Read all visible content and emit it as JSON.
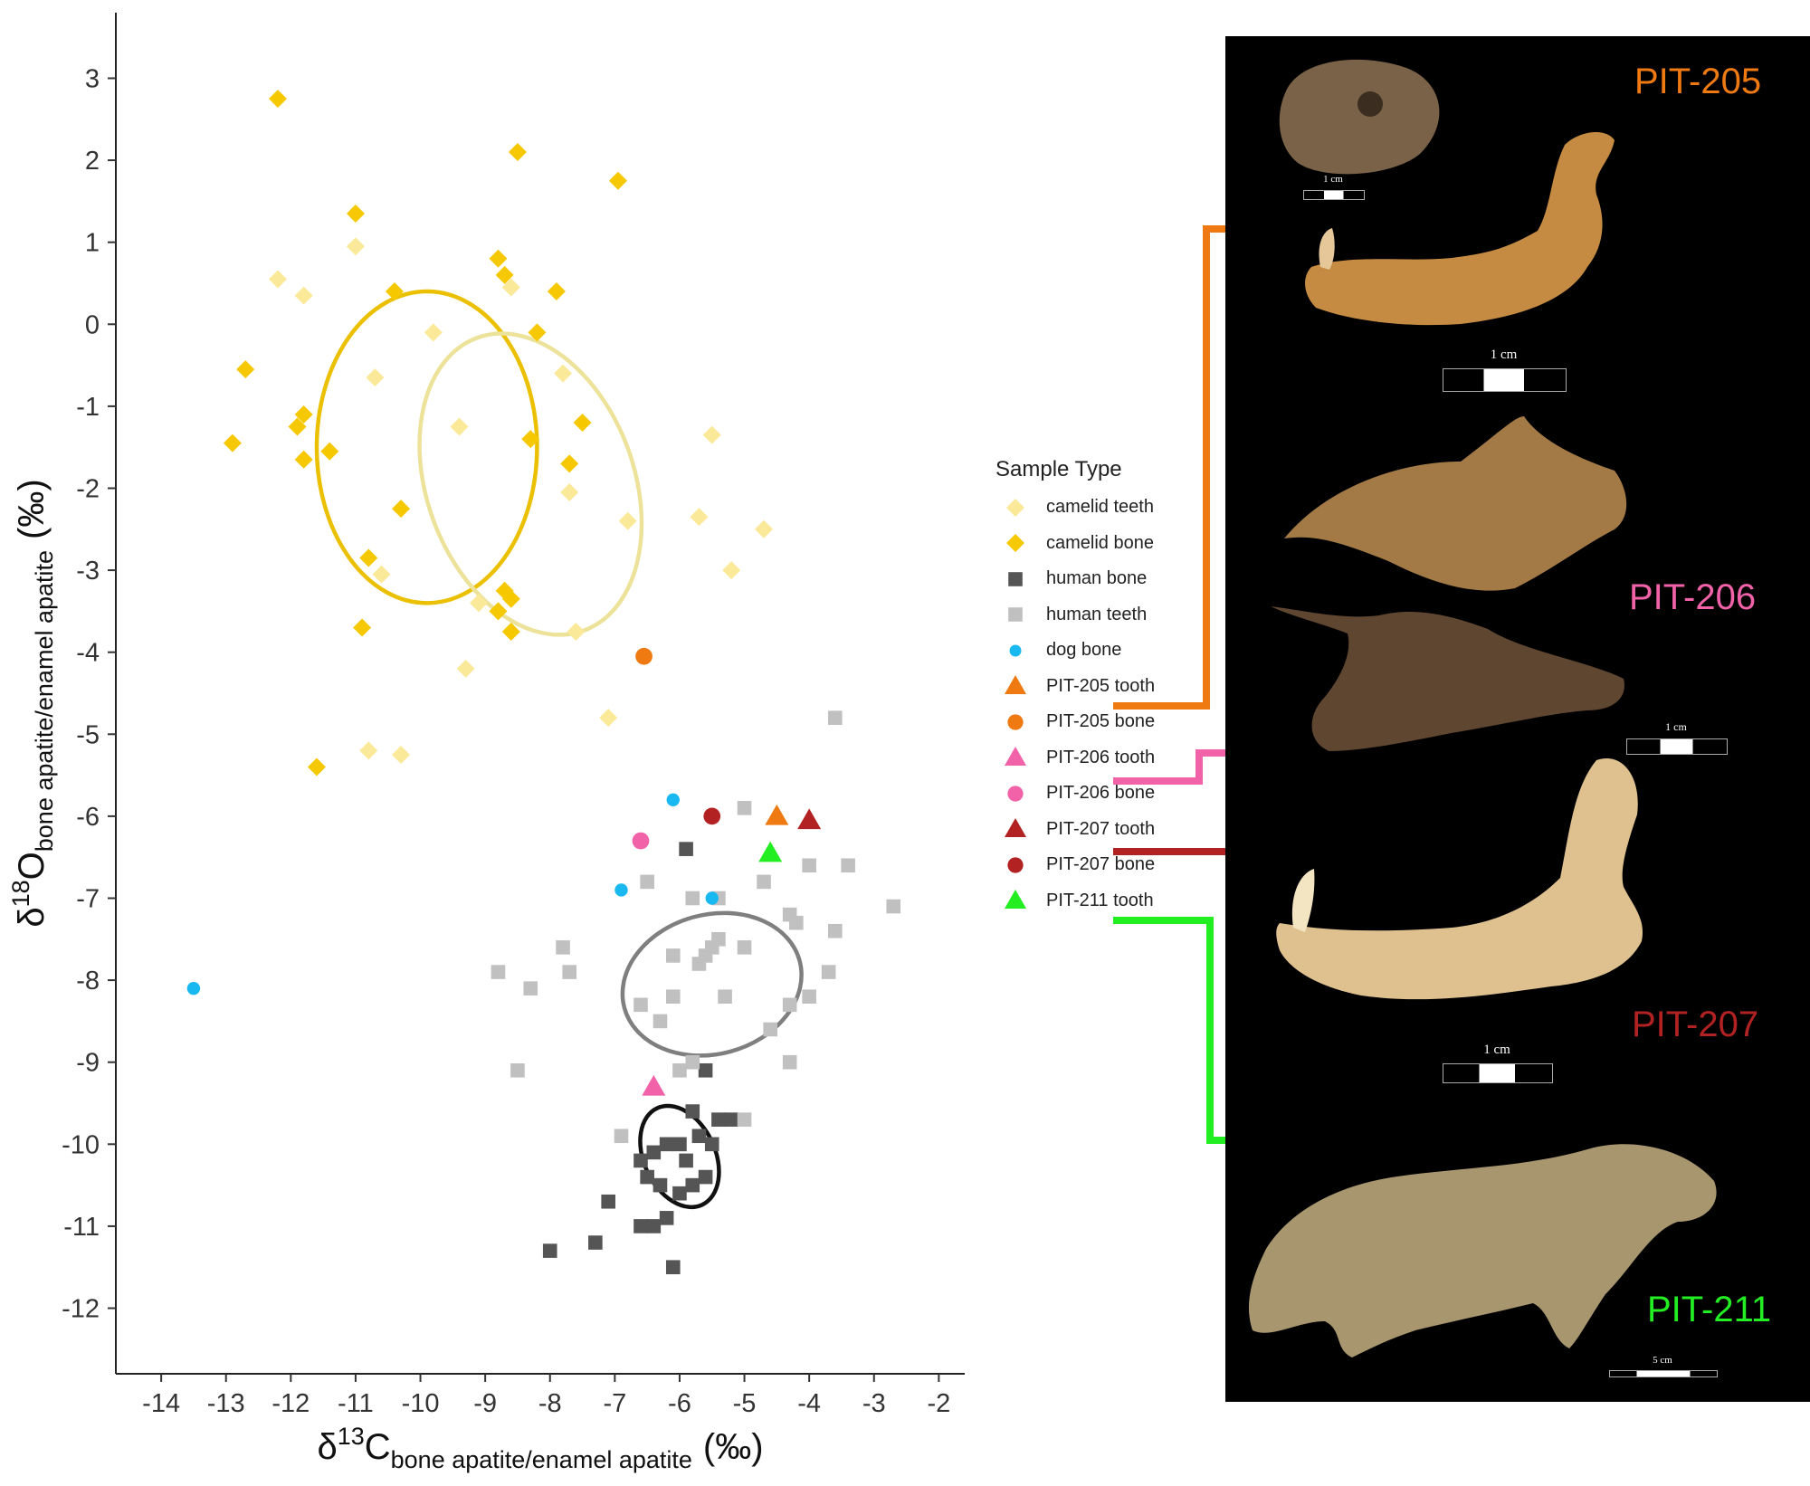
{
  "chart_data": {
    "type": "scatter",
    "xlabel": {
      "symbol": "δ",
      "sup": "13",
      "element": "C",
      "sub": "bone apatite/enamel apatite",
      "unit": "(‰)"
    },
    "ylabel": {
      "symbol": "δ",
      "sup": "18",
      "element": "O",
      "sub": "bone apatite/enamel apatite",
      "unit": "(‰)"
    },
    "xlim": [
      -14.7,
      -1.6
    ],
    "ylim": [
      -12.8,
      3.8
    ],
    "xticks": [
      -14,
      -13,
      -12,
      -11,
      -10,
      -9,
      -8,
      -7,
      -6,
      -5,
      -4,
      -3,
      -2
    ],
    "yticks": [
      3,
      2,
      1,
      0,
      -1,
      -2,
      -3,
      -4,
      -5,
      -6,
      -7,
      -8,
      -9,
      -10,
      -11,
      -12
    ],
    "grid": false,
    "legend_position": "right",
    "legend_title": "Sample Type",
    "series": [
      {
        "name": "camelid teeth",
        "marker": "diamond",
        "color": "#fbe99a",
        "points": [
          [
            -12.2,
            0.55
          ],
          [
            -11.8,
            0.35
          ],
          [
            -11.0,
            0.95
          ],
          [
            -10.7,
            -0.65
          ],
          [
            -9.8,
            -0.1
          ],
          [
            -9.4,
            -1.25
          ],
          [
            -8.6,
            0.45
          ],
          [
            -7.8,
            -0.6
          ],
          [
            -7.7,
            -2.05
          ],
          [
            -6.8,
            -2.4
          ],
          [
            -5.5,
            -1.35
          ],
          [
            -5.7,
            -2.35
          ],
          [
            -4.7,
            -2.5
          ],
          [
            -5.2,
            -3.0
          ],
          [
            -7.6,
            -3.75
          ],
          [
            -9.1,
            -3.4
          ],
          [
            -10.6,
            -3.05
          ],
          [
            -9.3,
            -4.2
          ],
          [
            -10.8,
            -5.2
          ],
          [
            -10.3,
            -5.25
          ],
          [
            -7.1,
            -4.8
          ]
        ]
      },
      {
        "name": "camelid bone",
        "marker": "diamond",
        "color": "#f5c800",
        "points": [
          [
            -12.2,
            2.75
          ],
          [
            -11.0,
            1.35
          ],
          [
            -10.4,
            0.4
          ],
          [
            -11.8,
            -1.1
          ],
          [
            -12.9,
            -1.45
          ],
          [
            -12.7,
            -0.55
          ],
          [
            -11.9,
            -1.25
          ],
          [
            -11.8,
            -1.65
          ],
          [
            -11.4,
            -1.55
          ],
          [
            -10.8,
            -2.85
          ],
          [
            -10.9,
            -3.7
          ],
          [
            -10.3,
            -2.25
          ],
          [
            -8.8,
            0.8
          ],
          [
            -8.7,
            0.6
          ],
          [
            -8.5,
            2.1
          ],
          [
            -8.2,
            -0.1
          ],
          [
            -7.9,
            0.4
          ],
          [
            -8.3,
            -1.4
          ],
          [
            -7.7,
            -1.7
          ],
          [
            -7.5,
            -1.2
          ],
          [
            -8.8,
            -3.5
          ],
          [
            -8.7,
            -3.25
          ],
          [
            -8.6,
            -3.35
          ],
          [
            -8.6,
            -3.75
          ],
          [
            -6.95,
            1.75
          ],
          [
            -11.6,
            -5.4
          ]
        ]
      },
      {
        "name": "human bone",
        "marker": "square",
        "color": "#555555",
        "points": [
          [
            -5.9,
            -6.4
          ],
          [
            -5.6,
            -9.1
          ],
          [
            -5.8,
            -9.6
          ],
          [
            -5.4,
            -9.7
          ],
          [
            -5.2,
            -9.7
          ],
          [
            -6.0,
            -10.0
          ],
          [
            -6.2,
            -10.0
          ],
          [
            -6.4,
            -10.1
          ],
          [
            -6.6,
            -10.2
          ],
          [
            -5.9,
            -10.2
          ],
          [
            -5.6,
            -10.4
          ],
          [
            -6.3,
            -10.5
          ],
          [
            -5.8,
            -10.5
          ],
          [
            -6.2,
            -10.9
          ],
          [
            -7.1,
            -10.7
          ],
          [
            -6.6,
            -11.0
          ],
          [
            -6.4,
            -11.0
          ],
          [
            -7.3,
            -11.2
          ],
          [
            -8.0,
            -11.3
          ],
          [
            -6.1,
            -11.5
          ],
          [
            -5.5,
            -10.0
          ],
          [
            -6.5,
            -10.4
          ],
          [
            -5.7,
            -9.9
          ],
          [
            -6.0,
            -10.6
          ]
        ]
      },
      {
        "name": "human teeth",
        "marker": "square",
        "color": "#c0c0c0",
        "points": [
          [
            -3.6,
            -4.8
          ],
          [
            -5.0,
            -5.9
          ],
          [
            -3.4,
            -6.6
          ],
          [
            -4.0,
            -6.6
          ],
          [
            -4.7,
            -6.8
          ],
          [
            -6.5,
            -6.8
          ],
          [
            -5.8,
            -7.0
          ],
          [
            -5.4,
            -7.0
          ],
          [
            -2.7,
            -7.1
          ],
          [
            -4.3,
            -7.2
          ],
          [
            -4.2,
            -7.3
          ],
          [
            -3.6,
            -7.4
          ],
          [
            -5.4,
            -7.5
          ],
          [
            -5.5,
            -7.6
          ],
          [
            -5.0,
            -7.6
          ],
          [
            -7.8,
            -7.6
          ],
          [
            -6.1,
            -7.7
          ],
          [
            -5.6,
            -7.7
          ],
          [
            -5.7,
            -7.8
          ],
          [
            -8.8,
            -7.9
          ],
          [
            -7.7,
            -7.9
          ],
          [
            -3.7,
            -7.9
          ],
          [
            -8.3,
            -8.1
          ],
          [
            -6.1,
            -8.2
          ],
          [
            -5.3,
            -8.2
          ],
          [
            -4.0,
            -8.2
          ],
          [
            -6.6,
            -8.3
          ],
          [
            -4.3,
            -8.3
          ],
          [
            -6.3,
            -8.5
          ],
          [
            -4.6,
            -8.6
          ],
          [
            -8.5,
            -9.1
          ],
          [
            -6.0,
            -9.1
          ],
          [
            -5.8,
            -9.0
          ],
          [
            -4.3,
            -9.0
          ],
          [
            -5.0,
            -9.7
          ],
          [
            -6.9,
            -9.9
          ]
        ]
      },
      {
        "name": "dog bone",
        "marker": "circle",
        "color": "#1ab8f0",
        "points": [
          [
            -13.5,
            -8.1
          ],
          [
            -6.1,
            -5.8
          ],
          [
            -6.9,
            -6.9
          ],
          [
            -5.5,
            -7.0
          ]
        ]
      },
      {
        "name": "PIT-205 tooth",
        "marker": "triangle",
        "color": "#f07a12",
        "points": [
          [
            -4.5,
            -6.0
          ]
        ]
      },
      {
        "name": "PIT-205 bone",
        "marker": "circle",
        "color": "#f07a12",
        "points": [
          [
            -6.55,
            -4.05
          ]
        ]
      },
      {
        "name": "PIT-206 tooth",
        "marker": "triangle",
        "color": "#f262a8",
        "points": [
          [
            -6.4,
            -9.3
          ]
        ]
      },
      {
        "name": "PIT-206 bone",
        "marker": "circle",
        "color": "#f262a8",
        "points": [
          [
            -6.6,
            -6.3
          ]
        ]
      },
      {
        "name": "PIT-207 tooth",
        "marker": "triangle",
        "color": "#b22222",
        "points": [
          [
            -4.0,
            -6.05
          ]
        ]
      },
      {
        "name": "PIT-207 bone",
        "marker": "circle",
        "color": "#b22222",
        "points": [
          [
            -5.5,
            -6.0
          ]
        ]
      },
      {
        "name": "PIT-211 tooth",
        "marker": "triangle",
        "color": "#22ee22",
        "points": [
          [
            -4.6,
            -6.45
          ]
        ]
      }
    ],
    "ellipses": [
      {
        "group": "camelid bone",
        "color": "#ebc000",
        "cx": -9.9,
        "cy": -1.5,
        "rx": 1.7,
        "ry": 1.9,
        "angle": 0
      },
      {
        "group": "camelid teeth",
        "color": "#ede29a",
        "cx": -8.3,
        "cy": -1.95,
        "rx": 1.6,
        "ry": 1.9,
        "angle": 20
      },
      {
        "group": "human teeth",
        "color": "#7f7f7f",
        "cx": -5.5,
        "cy": -8.05,
        "rx": 1.4,
        "ry": 0.85,
        "angle": 15
      },
      {
        "group": "human bone",
        "color": "#111111",
        "cx": -6.0,
        "cy": -10.15,
        "rx": 0.55,
        "ry": 0.65,
        "angle": 25
      }
    ]
  },
  "photo_panel": {
    "specimens": [
      {
        "label": "PIT-205",
        "color": "#f07a12"
      },
      {
        "label": "PIT-206",
        "color": "#f262a8"
      },
      {
        "label": "PIT-207",
        "color": "#b22222"
      },
      {
        "label": "PIT-211",
        "color": "#22ee22"
      }
    ],
    "scale_labels": [
      "1 cm",
      "1 cm",
      "1 cm",
      "1 cm",
      "5 cm"
    ]
  }
}
